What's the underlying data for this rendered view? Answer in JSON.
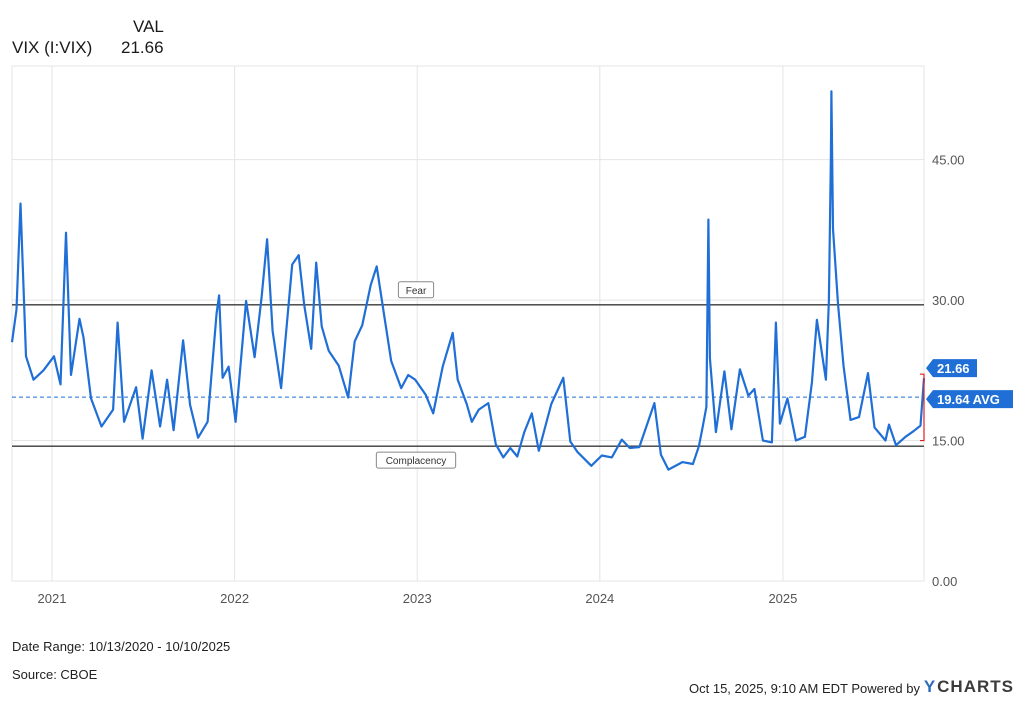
{
  "legend": {
    "header": "VAL",
    "series_name": "VIX (I:VIX)",
    "value": "21.66"
  },
  "footer": {
    "date_range": "Date Range: 10/13/2020 - 10/10/2025",
    "source": "Source: CBOE",
    "timestamp": "Oct 15, 2025, 9:10 AM EDT Powered by",
    "brand": "CHARTS"
  },
  "colors": {
    "line": "#1f6fd6",
    "grid": "#e4e4e4",
    "threshold": "#3a3a3a",
    "axis_text": "#555555",
    "change": "#e02020"
  },
  "chart_data": {
    "type": "line",
    "title": "",
    "xlabel": "",
    "ylabel": "",
    "ylim": [
      0,
      55
    ],
    "yticks": [
      "0.00",
      "15.00",
      "30.00",
      "45.00"
    ],
    "xticks": [
      "2021",
      "2022",
      "2023",
      "2024",
      "2025"
    ],
    "xlim": [
      "2020-10-13",
      "2025-10-10"
    ],
    "grid": true,
    "series": [
      {
        "x": [
          "2020-10-13",
          "2020-10-22",
          "2020-10-30",
          "2020-11-10",
          "2020-11-25",
          "2020-12-15",
          "2021-01-05",
          "2021-01-18",
          "2021-01-29",
          "2021-02-08",
          "2021-02-25",
          "2021-03-05",
          "2021-03-20",
          "2021-04-10",
          "2021-05-03",
          "2021-05-12",
          "2021-05-25",
          "2021-06-18",
          "2021-07-01",
          "2021-07-19",
          "2021-08-05",
          "2021-08-19",
          "2021-09-01",
          "2021-09-20",
          "2021-10-04",
          "2021-10-20",
          "2021-11-08",
          "2021-11-26",
          "2021-12-01",
          "2021-12-08",
          "2021-12-20",
          "2022-01-03",
          "2022-01-24",
          "2022-02-10",
          "2022-02-24",
          "2022-03-07",
          "2022-03-18",
          "2022-04-04",
          "2022-04-26",
          "2022-05-09",
          "2022-05-20",
          "2022-06-03",
          "2022-06-13",
          "2022-06-24",
          "2022-07-08",
          "2022-07-28",
          "2022-08-16",
          "2022-08-29",
          "2022-09-13",
          "2022-09-30",
          "2022-10-12",
          "2022-10-28",
          "2022-11-10",
          "2022-11-30",
          "2022-12-14",
          "2022-12-28",
          "2023-01-18",
          "2023-02-02",
          "2023-02-21",
          "2023-03-13",
          "2023-03-23",
          "2023-04-10",
          "2023-04-20",
          "2023-05-04",
          "2023-05-23",
          "2023-06-07",
          "2023-06-22",
          "2023-07-06",
          "2023-07-20",
          "2023-08-03",
          "2023-08-18",
          "2023-09-01",
          "2023-09-26",
          "2023-10-20",
          "2023-11-03",
          "2023-11-17",
          "2023-12-15",
          "2024-01-05",
          "2024-01-25",
          "2024-02-14",
          "2024-03-01",
          "2024-03-20",
          "2024-04-19",
          "2024-05-02",
          "2024-05-17",
          "2024-06-14",
          "2024-07-05",
          "2024-07-17",
          "2024-07-24",
          "2024-08-01",
          "2024-08-05",
          "2024-08-08",
          "2024-08-20",
          "2024-09-06",
          "2024-09-20",
          "2024-10-07",
          "2024-10-24",
          "2024-11-05",
          "2024-11-22",
          "2024-12-10",
          "2024-12-18",
          "2024-12-26",
          "2025-01-10",
          "2025-01-27",
          "2025-02-14",
          "2025-02-28",
          "2025-03-10",
          "2025-03-28",
          "2025-04-03",
          "2025-04-07",
          "2025-04-08",
          "2025-04-11",
          "2025-04-21",
          "2025-05-02",
          "2025-05-16",
          "2025-06-02",
          "2025-06-20",
          "2025-07-03",
          "2025-07-25",
          "2025-08-01",
          "2025-08-15",
          "2025-09-03",
          "2025-09-19",
          "2025-10-03",
          "2025-10-10"
        ],
        "values": [
          25.5,
          29.0,
          40.3,
          24.0,
          21.5,
          22.5,
          24.0,
          21.0,
          37.2,
          22.0,
          28.0,
          26.0,
          19.5,
          16.5,
          18.3,
          27.6,
          17.0,
          20.7,
          15.2,
          22.5,
          16.5,
          21.5,
          16.1,
          25.7,
          18.8,
          15.3,
          17.0,
          28.6,
          30.5,
          21.7,
          22.9,
          17.0,
          29.9,
          23.9,
          30.3,
          36.5,
          26.7,
          20.6,
          33.8,
          34.8,
          29.5,
          24.8,
          34.0,
          27.2,
          24.6,
          23.0,
          19.6,
          25.6,
          27.3,
          31.6,
          33.6,
          28.0,
          23.5,
          20.6,
          22.0,
          21.5,
          19.9,
          17.9,
          22.9,
          26.5,
          21.5,
          18.9,
          17.0,
          18.3,
          19.0,
          14.6,
          13.2,
          14.2,
          13.3,
          15.9,
          17.9,
          13.9,
          18.9,
          21.7,
          14.9,
          13.8,
          12.3,
          13.4,
          13.2,
          15.1,
          14.2,
          14.3,
          19.0,
          13.5,
          11.9,
          12.7,
          12.5,
          14.4,
          16.3,
          18.6,
          38.6,
          23.8,
          15.9,
          22.4,
          16.2,
          22.6,
          19.8,
          20.5,
          15.0,
          14.8,
          27.6,
          16.8,
          19.5,
          15.0,
          15.4,
          21.2,
          27.9,
          21.5,
          30.0,
          45.3,
          52.3,
          37.6,
          29.6,
          23.0,
          17.2,
          17.5,
          22.2,
          16.4,
          15.0,
          16.7,
          14.5,
          15.4,
          16.0,
          16.6,
          21.66
        ]
      }
    ],
    "reference_lines": [
      {
        "label": "Fear",
        "value": 29.5
      },
      {
        "label": "Complacency",
        "value": 14.4
      }
    ],
    "average": {
      "value": 19.64,
      "label": "19.64 AVG"
    },
    "last_value": {
      "value": 21.66,
      "label": "21.66"
    }
  }
}
